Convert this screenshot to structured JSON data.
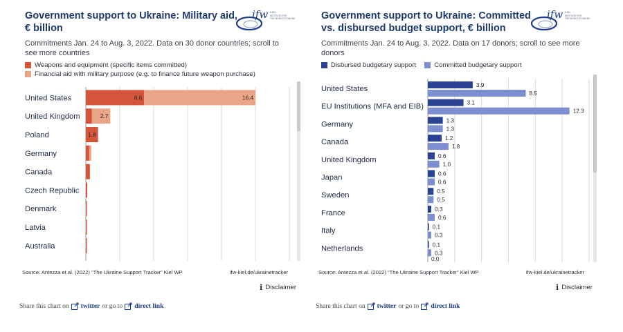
{
  "colors": {
    "weapons": "#d5553b",
    "financial": "#e9a585",
    "disbursed": "#2c4394",
    "committed": "#7e8fd1",
    "title": "#1c3a6e"
  },
  "logo": {
    "text": "ifw",
    "subtitle": "KIEL INSTITUTE FOR THE WORLD ECONOMY"
  },
  "left": {
    "title": "Government support to Ukraine: Military aid, € billion",
    "subtitle": "Commitments Jan. 24 to Aug. 3, 2022. Data on 30 donor countries; scroll to see more countries",
    "legend": [
      {
        "label": "Weapons and equipment (specific items committed)",
        "color": "#d5553b"
      },
      {
        "label": "Financial aid with military purpose (e.g. to finance future weapon purchase)",
        "color": "#e9a585"
      }
    ],
    "source": "Source: Antezza et al. (2022) “The Ukraine Support Tracker” Kiel WP",
    "link": "ifw-kiel.de/ukrainetracker",
    "disclaimer": "Disclaimer",
    "share": {
      "prefix": "Share this chart on",
      "twitter": "twitter",
      "middle": "or go to",
      "direct": "direct link"
    }
  },
  "right": {
    "title": "Government support to Ukraine: Committed vs. disbursed budget support, € billion",
    "subtitle": "Commitments Jan. 24 to Aug. 3, 2022. Data on 17 donors; scroll to see more donors",
    "legend": [
      {
        "label": "Disbursed budgetary support",
        "color": "#2c4394"
      },
      {
        "label": "Committed budgetary support",
        "color": "#7e8fd1"
      }
    ],
    "source": "Source: Antezza et al. (2022) “The Ukraine Support Tracker” Kiel WP",
    "link": "ifw-kiel.de/ukrainetracker",
    "disclaimer": "Disclaimer",
    "share": {
      "prefix": "Share this chart on",
      "twitter": "twitter",
      "middle": "or go to",
      "direct": "direct link"
    }
  },
  "chart_data": [
    {
      "type": "bar",
      "orientation": "horizontal",
      "stacked": true,
      "title": "Government support to Ukraine: Military aid, € billion",
      "categories": [
        "United States",
        "United Kingdom",
        "Poland",
        "Germany",
        "Canada",
        "Czech Republic",
        "Denmark",
        "Latvia",
        "Australia"
      ],
      "series": [
        {
          "name": "Weapons and equipment (specific items committed)",
          "values": [
            8.6,
            0.9,
            1.8,
            0.5,
            0.6,
            0.2,
            0.15,
            0.15,
            0.15
          ],
          "labels": [
            "8.6",
            "",
            "1.8",
            "",
            "",
            "",
            "",
            "",
            ""
          ]
        },
        {
          "name": "Financial aid with military purpose (e.g. to finance future weapon purchase)",
          "values": [
            16.4,
            2.7,
            0,
            0.3,
            0,
            0,
            0,
            0,
            0
          ],
          "labels": [
            "16.4",
            "2.7",
            "",
            "",
            "",
            "",
            "",
            "",
            ""
          ]
        }
      ],
      "xlim": [
        0,
        30
      ],
      "grid": true
    },
    {
      "type": "bar",
      "orientation": "horizontal",
      "stacked": false,
      "title": "Government support to Ukraine: Committed vs. disbursed budget support, € billion",
      "categories": [
        "United States",
        "EU Institutions (MFA and EIB)",
        "Germany",
        "Canada",
        "United Kingdom",
        "Japan",
        "Sweden",
        "France",
        "Italy",
        "Netherlands"
      ],
      "series": [
        {
          "name": "Disbursed budgetary support",
          "values": [
            3.9,
            3.1,
            1.3,
            1.2,
            0.6,
            0.6,
            0.5,
            0.3,
            0.1,
            0.1
          ],
          "labels": [
            "3.9",
            "3.1",
            "1.3",
            "1.2",
            "0.6",
            "0.6",
            "0.5",
            "0.3",
            "0.1",
            "0.1"
          ]
        },
        {
          "name": "Committed budgetary support",
          "values": [
            8.5,
            12.3,
            1.3,
            1.8,
            1.0,
            0.6,
            0.5,
            0.6,
            0.3,
            0.3
          ],
          "labels": [
            "8.5",
            "12.3",
            "1.3",
            "1.8",
            "1.0",
            "0.6",
            "0.5",
            "0.6",
            "0.3",
            "0.3"
          ]
        }
      ],
      "overflow_label": "0.0",
      "xlim": [
        0,
        14
      ],
      "grid": true
    }
  ]
}
